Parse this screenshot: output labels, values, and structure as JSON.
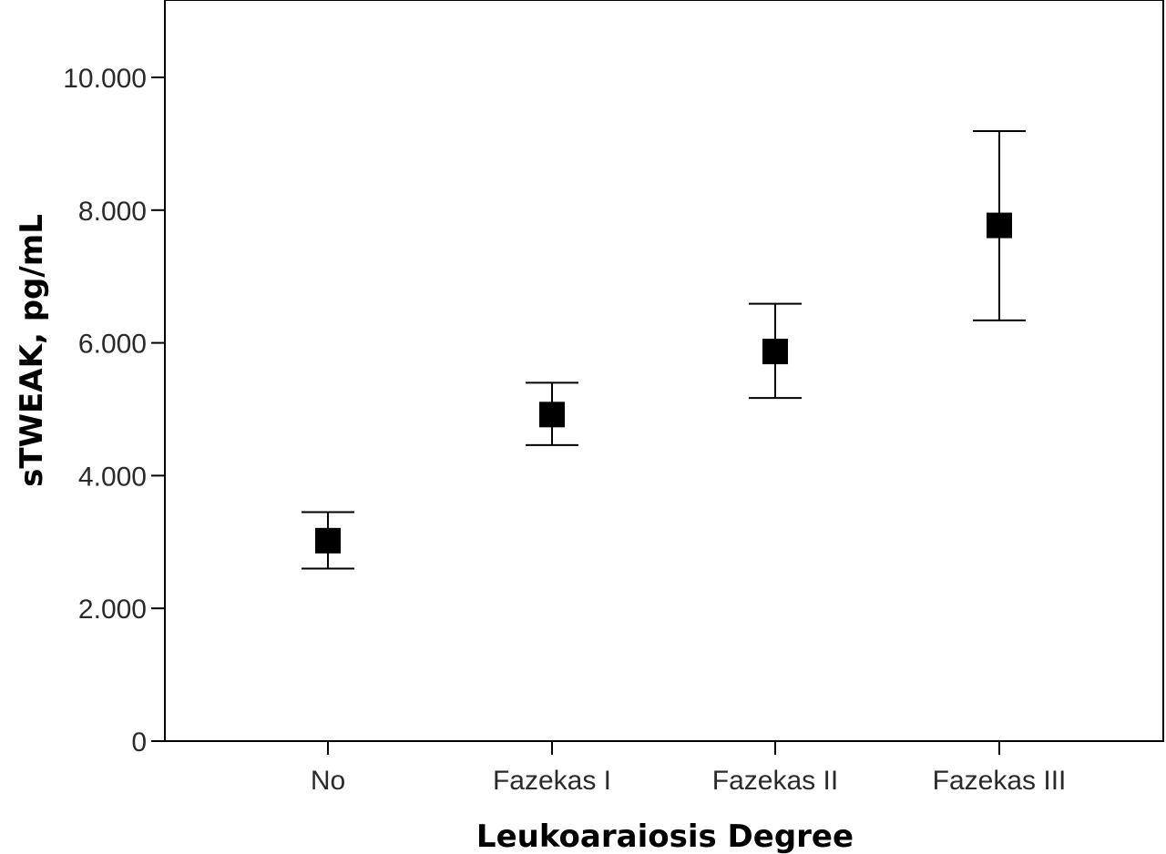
{
  "chart_data": {
    "type": "scatter",
    "title": "",
    "xlabel": "Leukoaraiosis Degree",
    "ylabel": "sTWEAK, pg/mL",
    "categories": [
      "No",
      "Fazekas I",
      "Fazekas II",
      "Fazekas III"
    ],
    "ylim": [
      0,
      11000
    ],
    "yticks": [
      {
        "value": 0,
        "label": "0"
      },
      {
        "value": 2000,
        "label": "2.000"
      },
      {
        "value": 4000,
        "label": "4.000"
      },
      {
        "value": 6000,
        "label": "6.000"
      },
      {
        "value": 8000,
        "label": "8.000"
      },
      {
        "value": 10000,
        "label": "10.000"
      }
    ],
    "series": [
      {
        "values": [
          3020,
          4920,
          5870,
          7770
        ],
        "lower": [
          2600,
          4460,
          5170,
          6340
        ],
        "upper": [
          3450,
          5400,
          6590,
          9190
        ]
      }
    ],
    "grid": false,
    "legend": "none",
    "marker_color": "#000000"
  }
}
